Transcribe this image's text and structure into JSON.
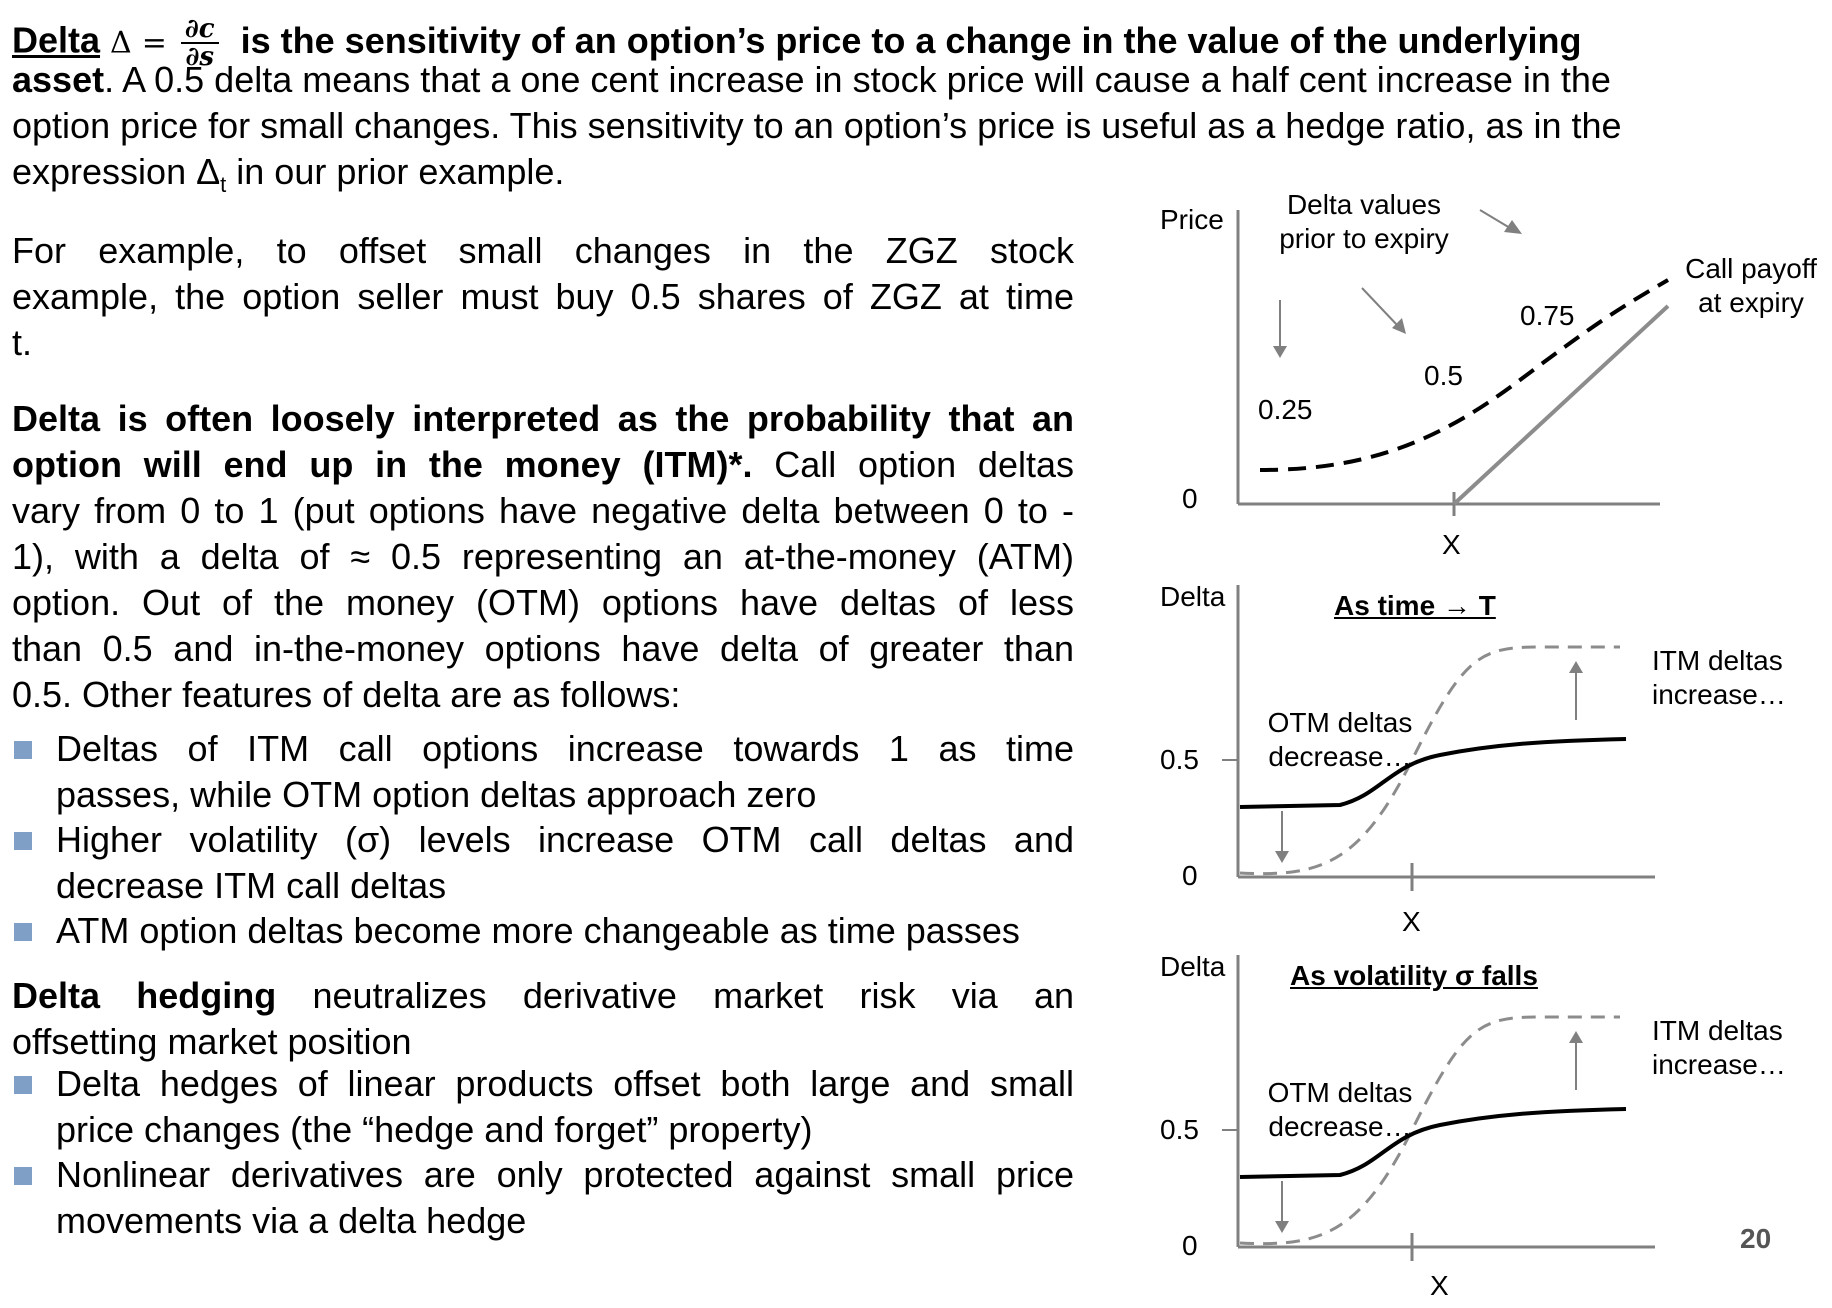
{
  "intro": {
    "delta_word": "Delta",
    "delta_symbol": "Δ",
    "equals": "=",
    "frac_num": "∂c",
    "frac_den": "∂s",
    "bold_rest": "is the sensitivity of an option’s price to a change in the value of the underlying",
    "bold_asset": "asset",
    "line2_rest": ". A 0.5 delta means that a one cent increase in stock price will cause a half cent increase in the",
    "line3": "option price for small changes.  This sensitivity to an option’s price is useful as a hedge ratio, as in the",
    "line4_pre": "expression Δ",
    "line4_sub": "t",
    "line4_post": " in our prior example."
  },
  "example": {
    "line1": "For example, to offset small changes in the ZGZ stock",
    "line2": "example, the option seller must buy 0.5 shares of ZGZ at time",
    "line3": "t."
  },
  "interpretation": {
    "bold1": "Delta is often loosely interpreted as the probability that an",
    "bold2": "option will end up in the money (ITM)*.",
    "line2_rest": "Call option deltas",
    "line3": "vary from 0 to 1 (put options have negative delta between 0 to -",
    "line4": "1), with a delta of ≈ 0.5 representing an at-the-money (ATM)",
    "line5": "option.  Out of the money (OTM) options have deltas of less",
    "line6": "than 0.5 and in-the-money options have delta of greater than",
    "line7": "0.5. Other features of delta are as follows:"
  },
  "features": [
    {
      "line1": "Deltas of ITM call options increase towards 1 as time",
      "line2": "passes, while OTM option deltas approach zero"
    },
    {
      "line1": "Higher volatility (σ) levels increase OTM call deltas and",
      "line2": "decrease ITM call deltas"
    },
    {
      "line1": "ATM option deltas become more changeable as time passes",
      "line2": ""
    }
  ],
  "hedging": {
    "bold": "Delta hedging",
    "line1_rest": " neutralizes derivative market risk via an",
    "line2": "offsetting market position",
    "bullets": [
      {
        "line1": "Delta hedges of linear products offset both large and small",
        "line2": "price changes (the “hedge and forget” property)"
      },
      {
        "line1": "Nonlinear derivatives are only protected against small price",
        "line2": "movements via a delta hedge"
      }
    ]
  },
  "chart1": {
    "ylabel": "Price",
    "zero": "0",
    "xtick": "X",
    "annotation": "Delta values\nprior to expiry",
    "annotation_l1": "Delta values",
    "annotation_l2": "prior to expiry",
    "payoff_l1": "Call payoff",
    "payoff_l2": "at expiry",
    "delta_labels": [
      "0.25",
      "0.5",
      "0.75"
    ]
  },
  "chart2": {
    "ylabel": "Delta",
    "title": "As time → T",
    "half": "0.5",
    "zero": "0",
    "xtick": "X",
    "otm_l1": "OTM deltas",
    "otm_l2": "decrease…",
    "itm_l1": "ITM deltas",
    "itm_l2": "increase…"
  },
  "chart3": {
    "ylabel": "Delta",
    "title": "As volatility σ falls",
    "half": "0.5",
    "zero": "0",
    "xtick": "X",
    "otm_l1": "OTM deltas",
    "otm_l2": "decrease…",
    "itm_l1": "ITM deltas",
    "itm_l2": "increase…"
  },
  "page_number": "20",
  "colors": {
    "bullet": "#7f9fc6",
    "axis": "#808080",
    "dashed_gray": "#8c8c8c"
  }
}
